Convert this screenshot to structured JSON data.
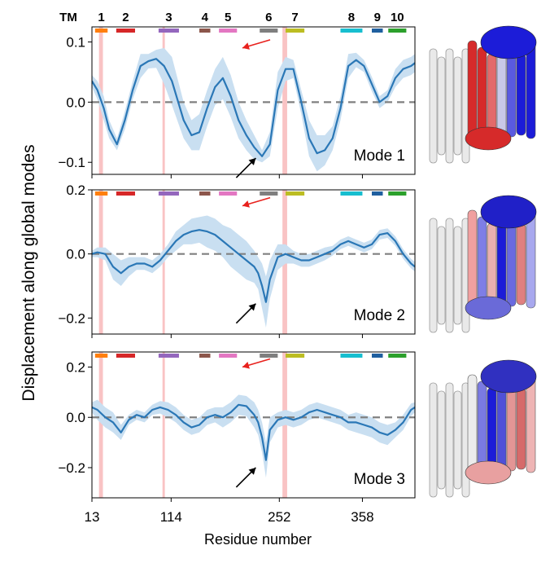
{
  "figure": {
    "ylabel": "Displacement along global modes",
    "xlabel": "Residue number",
    "tm_header": "TM",
    "xticks": [
      "13",
      "114",
      "252",
      "358"
    ]
  },
  "tm_segments": [
    {
      "label": "1",
      "color": "#ff7f0e",
      "start": 17,
      "end": 33
    },
    {
      "label": "2",
      "color": "#d62728",
      "start": 44,
      "end": 68
    },
    {
      "label": "3",
      "color": "#9467bd",
      "start": 98,
      "end": 124
    },
    {
      "label": "4",
      "color": "#8c564b",
      "start": 150,
      "end": 164
    },
    {
      "label": "5",
      "color": "#e377c2",
      "start": 175,
      "end": 198
    },
    {
      "label": "6",
      "color": "#7f7f7f",
      "start": 227,
      "end": 250
    },
    {
      "label": "7",
      "color": "#bcbd22",
      "start": 260,
      "end": 284
    },
    {
      "label": "8",
      "color": "#17becf",
      "start": 330,
      "end": 358
    },
    {
      "label": "9",
      "color": "#1f5f9f",
      "start": 370,
      "end": 384
    },
    {
      "label": "10",
      "color": "#2ca02c",
      "start": 391,
      "end": 414
    }
  ],
  "highlights": [
    [
      22,
      27
    ],
    [
      103,
      106
    ],
    [
      256,
      262
    ]
  ],
  "chart_data": [
    {
      "type": "line",
      "title": "Mode 1",
      "xlabel": "Residue number",
      "ylabel": "Displacement along global modes",
      "xlim": [
        13,
        425
      ],
      "ylim": [
        -0.12,
        0.125
      ],
      "yticks": [
        -0.1,
        0.0,
        0.1
      ],
      "ytick_labels": [
        "−0.1",
        "0.0",
        "0.1"
      ],
      "x": [
        13,
        20,
        28,
        35,
        45,
        55,
        65,
        75,
        85,
        95,
        105,
        115,
        130,
        140,
        150,
        160,
        170,
        180,
        190,
        200,
        210,
        220,
        230,
        240,
        250,
        260,
        270,
        280,
        290,
        300,
        310,
        320,
        330,
        340,
        350,
        360,
        370,
        380,
        390,
        400,
        410,
        420,
        425
      ],
      "y": [
        0.035,
        0.02,
        -0.01,
        -0.045,
        -0.07,
        -0.03,
        0.02,
        0.06,
        0.068,
        0.072,
        0.06,
        0.035,
        -0.03,
        -0.055,
        -0.05,
        -0.01,
        0.025,
        0.04,
        0.01,
        -0.03,
        -0.055,
        -0.075,
        -0.09,
        -0.07,
        0.02,
        0.055,
        0.055,
        0.0,
        -0.06,
        -0.085,
        -0.08,
        -0.06,
        -0.01,
        0.06,
        0.07,
        0.06,
        0.03,
        0.0,
        0.01,
        0.04,
        0.055,
        0.06,
        0.065
      ],
      "spread": [
        0.01,
        0.015,
        0.02,
        0.015,
        0.01,
        0.015,
        0.015,
        0.02,
        0.012,
        0.015,
        0.03,
        0.04,
        0.03,
        0.025,
        0.03,
        0.03,
        0.03,
        0.035,
        0.035,
        0.03,
        0.025,
        0.02,
        0.01,
        0.02,
        0.03,
        0.02,
        0.015,
        0.02,
        0.03,
        0.03,
        0.025,
        0.02,
        0.02,
        0.02,
        0.012,
        0.01,
        0.012,
        0.01,
        0.01,
        0.015,
        0.015,
        0.015,
        0.015
      ],
      "red_arrow": {
        "x": 205,
        "y": 0.09
      },
      "black_arrow": {
        "x": 222,
        "y": -0.093
      }
    },
    {
      "type": "line",
      "title": "Mode 2",
      "xlabel": "Residue number",
      "ylabel": "Displacement along global modes",
      "xlim": [
        13,
        425
      ],
      "ylim": [
        -0.25,
        0.2
      ],
      "yticks": [
        -0.2,
        0.0,
        0.2
      ],
      "ytick_labels": [
        "−0.2",
        "0.0",
        "0.2"
      ],
      "x": [
        13,
        20,
        30,
        40,
        50,
        60,
        70,
        80,
        90,
        100,
        110,
        120,
        130,
        140,
        150,
        160,
        170,
        180,
        190,
        200,
        210,
        220,
        225,
        230,
        235,
        240,
        250,
        260,
        270,
        280,
        290,
        300,
        310,
        320,
        330,
        340,
        350,
        360,
        370,
        380,
        390,
        400,
        410,
        420,
        425
      ],
      "y": [
        0.0,
        0.005,
        0.0,
        -0.04,
        -0.06,
        -0.04,
        -0.03,
        -0.03,
        -0.04,
        -0.02,
        0.01,
        0.04,
        0.06,
        0.07,
        0.075,
        0.07,
        0.06,
        0.04,
        0.02,
        0.0,
        -0.02,
        -0.04,
        -0.06,
        -0.1,
        -0.15,
        -0.08,
        -0.01,
        0.0,
        -0.01,
        -0.02,
        -0.02,
        -0.01,
        0.0,
        0.01,
        0.03,
        0.04,
        0.03,
        0.02,
        0.03,
        0.06,
        0.065,
        0.04,
        0.0,
        -0.03,
        -0.04
      ],
      "spread": [
        0.01,
        0.015,
        0.02,
        0.04,
        0.04,
        0.03,
        0.02,
        0.02,
        0.02,
        0.02,
        0.02,
        0.03,
        0.03,
        0.04,
        0.04,
        0.05,
        0.05,
        0.05,
        0.06,
        0.06,
        0.06,
        0.05,
        0.05,
        0.07,
        0.08,
        0.06,
        0.04,
        0.03,
        0.02,
        0.02,
        0.02,
        0.02,
        0.02,
        0.015,
        0.015,
        0.015,
        0.015,
        0.015,
        0.015,
        0.015,
        0.015,
        0.015,
        0.015,
        0.015,
        0.015
      ],
      "red_arrow": {
        "x": 205,
        "y": 0.15
      },
      "black_arrow": {
        "x": 222,
        "y": -0.155
      }
    },
    {
      "type": "line",
      "title": "Mode 3",
      "xlabel": "Residue number",
      "ylabel": "Displacement along global modes",
      "xlim": [
        13,
        425
      ],
      "ylim": [
        -0.32,
        0.26
      ],
      "yticks": [
        -0.2,
        0.0,
        0.2
      ],
      "ytick_labels": [
        "−0.2",
        "0.0",
        "0.2"
      ],
      "x": [
        13,
        20,
        30,
        40,
        50,
        60,
        70,
        80,
        90,
        100,
        110,
        120,
        130,
        140,
        150,
        160,
        170,
        180,
        190,
        200,
        210,
        220,
        225,
        230,
        235,
        240,
        250,
        260,
        270,
        280,
        290,
        300,
        310,
        320,
        330,
        340,
        350,
        360,
        370,
        380,
        390,
        400,
        410,
        420,
        425
      ],
      "y": [
        0.04,
        0.03,
        0.0,
        -0.02,
        -0.06,
        -0.01,
        0.01,
        0.0,
        0.03,
        0.04,
        0.03,
        0.01,
        -0.02,
        -0.04,
        -0.03,
        0.0,
        0.01,
        0.0,
        0.02,
        0.05,
        0.045,
        0.01,
        -0.02,
        -0.08,
        -0.17,
        -0.05,
        -0.01,
        0.0,
        -0.01,
        0.0,
        0.02,
        0.03,
        0.02,
        0.01,
        0.0,
        -0.02,
        -0.02,
        -0.03,
        -0.04,
        -0.06,
        -0.07,
        -0.05,
        -0.02,
        0.03,
        0.04
      ],
      "spread": [
        0.02,
        0.04,
        0.04,
        0.04,
        0.03,
        0.02,
        0.02,
        0.02,
        0.02,
        0.025,
        0.03,
        0.03,
        0.03,
        0.03,
        0.03,
        0.03,
        0.03,
        0.04,
        0.04,
        0.04,
        0.04,
        0.05,
        0.05,
        0.06,
        0.07,
        0.05,
        0.03,
        0.03,
        0.03,
        0.03,
        0.03,
        0.03,
        0.03,
        0.03,
        0.03,
        0.03,
        0.04,
        0.04,
        0.04,
        0.04,
        0.04,
        0.03,
        0.03,
        0.025,
        0.02
      ],
      "red_arrow": {
        "x": 205,
        "y": 0.2
      },
      "black_arrow": {
        "x": 222,
        "y": -0.2
      }
    }
  ],
  "colors": {
    "line": "#2a77b6",
    "band": "#c9dff1",
    "zero_line": "#808080",
    "highlight": "#f9c3c4",
    "red_arrow": "#e8211d",
    "black_arrow": "#000000",
    "struct_red": "#d62a2a",
    "struct_blue": "#1c1cd8",
    "struct_white": "#e9e9e9"
  },
  "structures": [
    {
      "mode": "Mode 1",
      "scheme": "red-left blue-right"
    },
    {
      "mode": "Mode 2",
      "scheme": "mixed red-blue"
    },
    {
      "mode": "Mode 3",
      "scheme": "blue-left red-right"
    }
  ]
}
